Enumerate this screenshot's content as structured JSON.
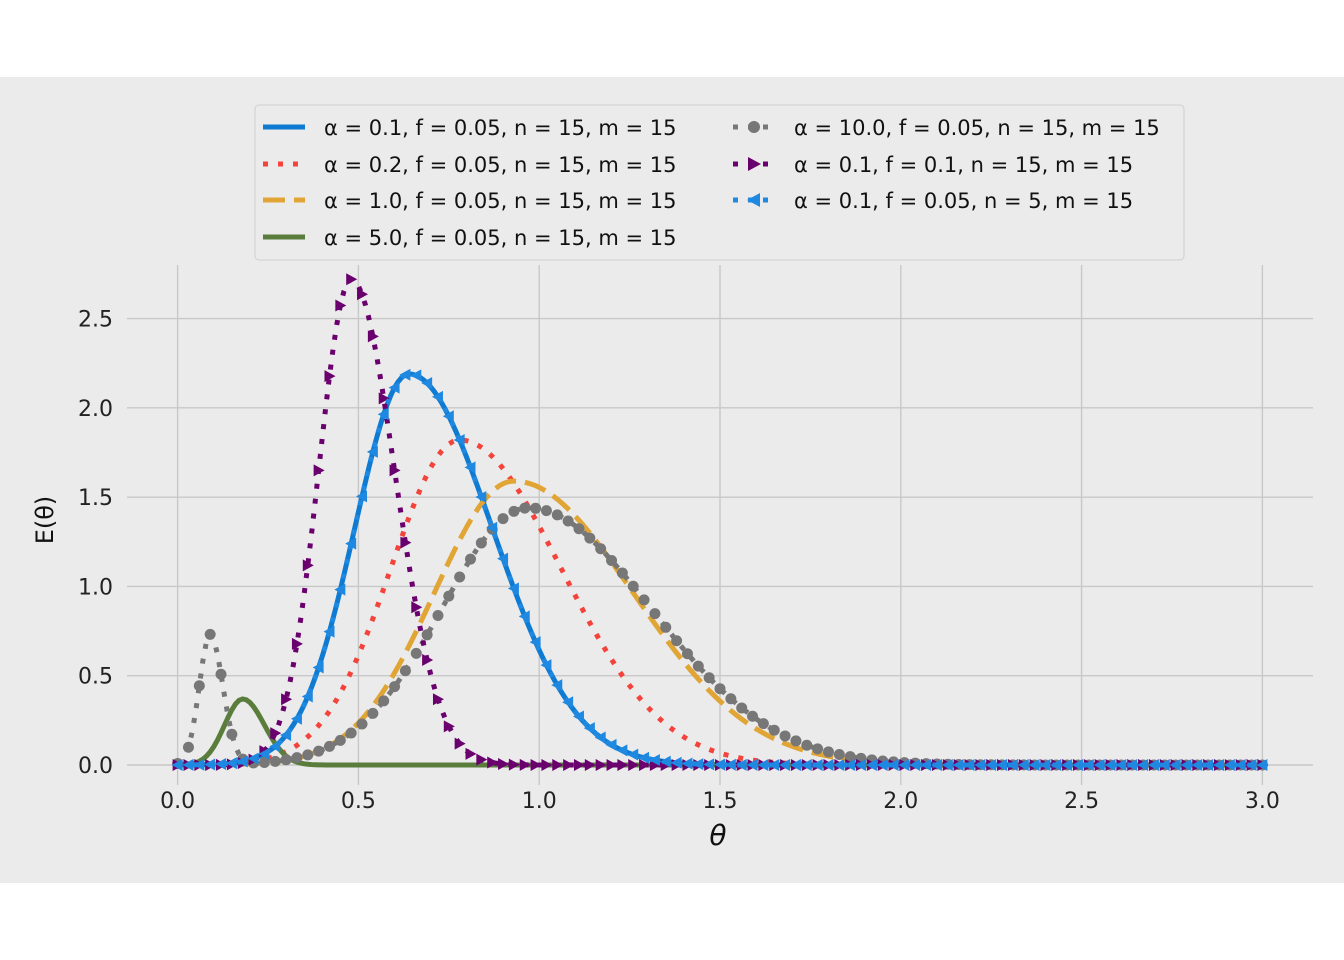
{
  "chart_data": {
    "type": "line",
    "title": "",
    "xlabel": "θ",
    "ylabel": "E(θ)",
    "xlim": [
      -0.14,
      3.14
    ],
    "ylim": [
      -0.14,
      2.8
    ],
    "grid": true,
    "legend_placement": "top-center",
    "x_ticks": [
      "0.0",
      "0.5",
      "1.0",
      "1.5",
      "2.0",
      "2.5",
      "3.0"
    ],
    "y_ticks": [
      "0.0",
      "0.5",
      "1.0",
      "1.5",
      "2.0",
      "2.5"
    ],
    "x_tick_values": [
      0,
      0.5,
      1.0,
      1.5,
      2.0,
      2.5,
      3.0
    ],
    "y_tick_values": [
      0,
      0.5,
      1.0,
      1.5,
      2.0,
      2.5
    ],
    "series": [
      {
        "name": "α = 0.1, f = 0.05, n = 15, m = 15",
        "color": "#0e7ad1",
        "style": "solid",
        "marker": "none",
        "peak_x": 0.64,
        "peak_y": 2.19,
        "width_left": 0.15,
        "width_right": 0.23
      },
      {
        "name": "α = 0.2, f = 0.05, n = 15, m = 15",
        "color": "#f4433b",
        "style": "dotted",
        "marker": "none",
        "peak_x": 0.78,
        "peak_y": 1.82,
        "width_left": 0.19,
        "width_right": 0.28
      },
      {
        "name": "α = 1.0, f = 0.05, n = 15, m = 15",
        "color": "#e0a534",
        "style": "dashed",
        "marker": "none",
        "peak_x": 0.93,
        "peak_y": 1.59,
        "width_left": 0.22,
        "width_right": 0.33
      },
      {
        "name": "α = 5.0, f = 0.05, n = 15, m = 15",
        "color": "#5a7d3c",
        "style": "solid",
        "marker": "none",
        "peak_x": 0.18,
        "peak_y": 0.37,
        "width_left": 0.05,
        "width_right": 0.06
      },
      {
        "name": "α = 10.0, f = 0.05, n = 15, m = 15",
        "color": "#777777",
        "style": "dotted",
        "marker": "circle",
        "peak_x": 0.09,
        "peak_y": 0.73,
        "width_left": 0.03,
        "width_right": 0.035,
        "second_peak_x": 0.97,
        "second_peak_y": 1.44,
        "second_width_left": 0.24,
        "second_width_right": 0.34
      },
      {
        "name": "α = 0.1, f = 0.1, n = 15, m = 15",
        "color": "#6a006e",
        "style": "dotted",
        "marker": "triangle-right",
        "peak_x": 0.48,
        "peak_y": 2.72,
        "width_left": 0.09,
        "width_right": 0.12
      },
      {
        "name": "α = 0.1, f = 0.05, n = 5, m = 15",
        "color": "#1f88e0",
        "style": "dotted",
        "marker": "triangle-left",
        "peak_x": 0.64,
        "peak_y": 2.19,
        "width_left": 0.15,
        "width_right": 0.23
      }
    ]
  }
}
